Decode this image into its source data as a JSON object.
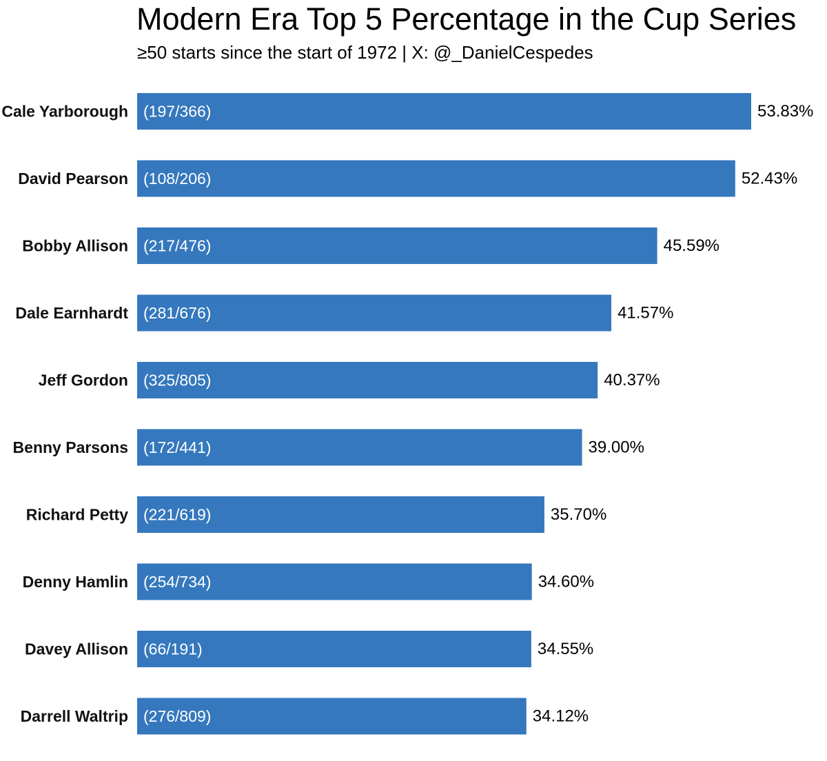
{
  "chart_data": {
    "type": "bar",
    "orientation": "horizontal",
    "title": "Modern Era Top 5 Percentage in the Cup Series",
    "subtitle": "≥50 starts since the start of 1972 | X: @_DanielCespedes",
    "categories": [
      "Cale Yarborough",
      "David Pearson",
      "Bobby Allison",
      "Dale Earnhardt",
      "Jeff Gordon",
      "Benny Parsons",
      "Richard Petty",
      "Denny Hamlin",
      "Davey Allison",
      "Darrell Waltrip"
    ],
    "values": [
      53.83,
      52.43,
      45.59,
      41.57,
      40.37,
      39.0,
      35.7,
      34.6,
      34.55,
      34.12
    ],
    "value_labels": [
      "53.83%",
      "52.43%",
      "45.59%",
      "41.57%",
      "40.37%",
      "39.00%",
      "35.70%",
      "34.60%",
      "34.55%",
      "34.12%"
    ],
    "bar_labels": [
      "(197/366)",
      "(108/206)",
      "(217/476)",
      "(281/676)",
      "(325/805)",
      "(172/441)",
      "(221/619)",
      "(254/734)",
      "(66/191)",
      "(276/809)"
    ],
    "xlim": [
      0,
      60
    ],
    "grid": false,
    "legend": "none",
    "bar_color": "#3578bd",
    "bar_label_color": "#ffffff",
    "value_label_color": "#000000"
  }
}
